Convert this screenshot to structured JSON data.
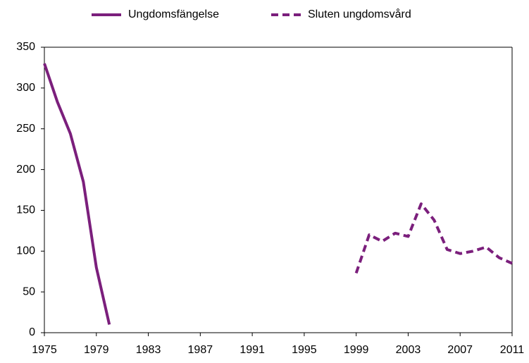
{
  "chart_data": {
    "type": "line",
    "x": [
      1975,
      1976,
      1977,
      1978,
      1979,
      1980,
      1981,
      1982,
      1983,
      1984,
      1985,
      1986,
      1987,
      1988,
      1989,
      1990,
      1991,
      1992,
      1993,
      1994,
      1995,
      1996,
      1997,
      1998,
      1999,
      2000,
      2001,
      2002,
      2003,
      2004,
      2005,
      2006,
      2007,
      2008,
      2009,
      2010,
      2011
    ],
    "series": [
      {
        "name": "Ungdomsfängelse",
        "color": "#7b1f7c",
        "dash": false,
        "values": [
          330,
          283,
          244,
          185,
          80,
          10,
          null,
          null,
          null,
          null,
          null,
          null,
          null,
          null,
          null,
          null,
          null,
          null,
          null,
          null,
          null,
          null,
          null,
          null,
          null,
          null,
          null,
          null,
          null,
          null,
          null,
          null,
          null,
          null,
          null,
          null,
          null
        ]
      },
      {
        "name": "Sluten ungdomsvård",
        "color": "#7b1f7c",
        "dash": true,
        "values": [
          null,
          null,
          null,
          null,
          null,
          null,
          null,
          null,
          null,
          null,
          null,
          null,
          null,
          null,
          null,
          null,
          null,
          null,
          null,
          null,
          null,
          null,
          null,
          null,
          73,
          120,
          112,
          122,
          118,
          158,
          138,
          102,
          97,
          100,
          105,
          92,
          85
        ]
      }
    ],
    "xlim": [
      1975,
      2011
    ],
    "xticks": [
      1975,
      1979,
      1983,
      1987,
      1991,
      1995,
      1999,
      2003,
      2007,
      2011
    ],
    "ylim": [
      0,
      350
    ],
    "yticks": [
      0,
      50,
      100,
      150,
      200,
      250,
      300,
      350
    ],
    "grid": false,
    "legend": "top"
  }
}
